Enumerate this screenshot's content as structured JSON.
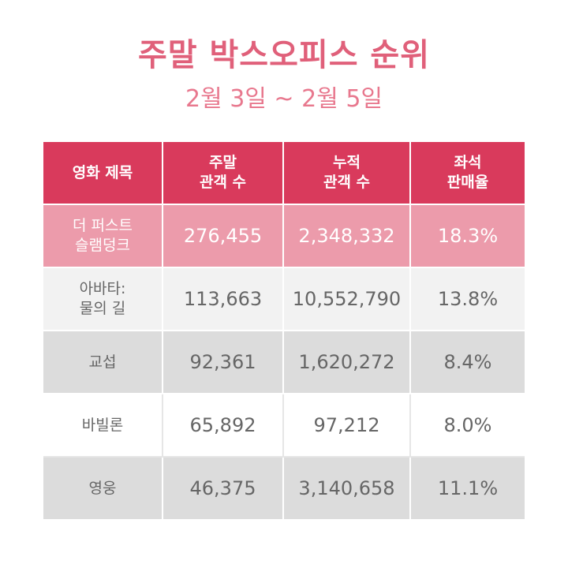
{
  "title": "주말 박스오피스 순위",
  "subtitle": "2월 3일 ~ 2월 5일",
  "table": {
    "headers": [
      {
        "line1": "영화 제목",
        "line2": ""
      },
      {
        "line1": "주말",
        "line2": "관객 수"
      },
      {
        "line1": "누적",
        "line2": "관객 수"
      },
      {
        "line1": "좌석",
        "line2": "판매율"
      }
    ],
    "rows": [
      {
        "title_line1": "더 퍼스트",
        "title_line2": "슬램덩크",
        "weekend": "276,455",
        "cumulative": "2,348,332",
        "seat_rate": "18.3%"
      },
      {
        "title_line1": "아바타:",
        "title_line2": "물의 길",
        "weekend": "113,663",
        "cumulative": "10,552,790",
        "seat_rate": "13.8%"
      },
      {
        "title_line1": "교섭",
        "title_line2": "",
        "weekend": "92,361",
        "cumulative": "1,620,272",
        "seat_rate": "8.4%"
      },
      {
        "title_line1": "바빌론",
        "title_line2": "",
        "weekend": "65,892",
        "cumulative": "97,212",
        "seat_rate": "8.0%"
      },
      {
        "title_line1": "영웅",
        "title_line2": "",
        "weekend": "46,375",
        "cumulative": "3,140,658",
        "seat_rate": "11.1%"
      }
    ]
  },
  "colors": {
    "title": "#e0607a",
    "subtitle": "#e8788e",
    "header_bg": "#d93a5c",
    "highlight_row_bg": "#ec9bab",
    "row_light_bg": "#f2f2f2",
    "row_dark_bg": "#dcdcdc",
    "text_gray": "#666666"
  }
}
